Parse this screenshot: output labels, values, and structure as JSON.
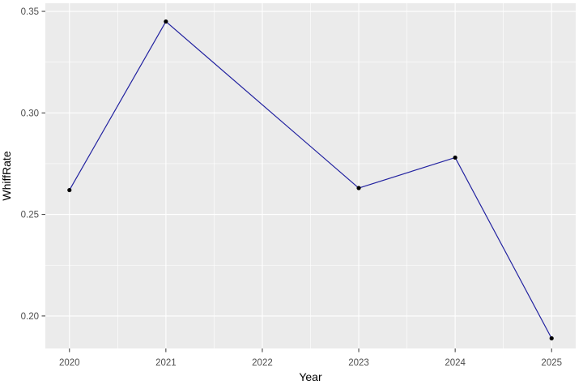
{
  "chart_data": {
    "type": "line",
    "title": "",
    "xlabel": "Year",
    "ylabel": "WhiffRate",
    "x": [
      2020,
      2021,
      2023,
      2024,
      2025
    ],
    "y": [
      0.262,
      0.345,
      0.263,
      0.278,
      0.189
    ],
    "xlim": [
      2019.75,
      2025.25
    ],
    "ylim": [
      0.184,
      0.354
    ],
    "x_ticks": [
      2020,
      2021,
      2022,
      2023,
      2024,
      2025
    ],
    "x_tick_labels": [
      "2020",
      "2021",
      "2022",
      "2023",
      "2024",
      "2025"
    ],
    "y_ticks": [
      0.2,
      0.25,
      0.3,
      0.35
    ],
    "y_tick_labels": [
      "0.20",
      "0.25",
      "0.30",
      "0.35"
    ],
    "grid": "major-and-minor",
    "legend": "none",
    "point_shape": "filled-circle",
    "colors": {
      "line": "#2222A0",
      "point": "#000000",
      "panel_background": "#EBEBEB",
      "grid": "#FFFFFF",
      "tick_mark": "#333333",
      "tick_label": "#4D4D4D",
      "axis_title": "#000000",
      "page_background": "#FFFFFF"
    }
  }
}
